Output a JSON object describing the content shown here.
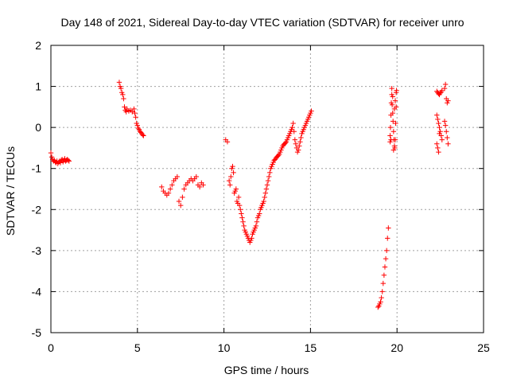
{
  "chart_data": {
    "type": "scatter",
    "title": "Day 148 of 2021, Sidereal Day-to-day VTEC variation (SDTVAR) for receiver unro",
    "xlabel": "GPS time / hours",
    "ylabel": "SDTVAR / TECUs",
    "xlim": [
      0,
      25
    ],
    "ylim": [
      -5,
      2
    ],
    "xticks": [
      0,
      5,
      10,
      15,
      20,
      25
    ],
    "yticks": [
      -5,
      -4,
      -3,
      -2,
      -1,
      0,
      1,
      2
    ],
    "xtick_labels": [
      "0",
      "5",
      "10",
      "15",
      "20",
      "25"
    ],
    "ytick_labels": [
      "-5",
      "-4",
      "-3",
      "-2",
      "-1",
      "0",
      "1",
      "2"
    ],
    "grid": true,
    "marker": "+",
    "color": "#ff0000",
    "series": [
      {
        "name": "SDTVAR",
        "x": [
          0.0,
          0.05,
          0.1,
          0.15,
          0.2,
          0.25,
          0.3,
          0.35,
          0.4,
          0.45,
          0.5,
          0.55,
          0.6,
          0.65,
          0.7,
          0.75,
          0.8,
          0.85,
          0.9,
          0.95,
          1.0,
          1.05,
          3.95,
          4.0,
          4.05,
          4.1,
          4.15,
          4.2,
          4.25,
          4.3,
          4.35,
          4.4,
          4.5,
          4.6,
          4.7,
          4.8,
          4.85,
          4.9,
          4.95,
          5.0,
          5.05,
          5.1,
          5.15,
          5.2,
          5.25,
          5.3,
          5.35,
          6.4,
          6.5,
          6.6,
          6.7,
          6.8,
          6.9,
          7.0,
          7.1,
          7.2,
          7.3,
          7.4,
          7.5,
          7.6,
          7.7,
          7.8,
          7.9,
          8.0,
          8.1,
          8.2,
          8.3,
          8.4,
          8.5,
          8.6,
          8.7,
          8.8,
          10.1,
          10.2,
          10.3,
          10.35,
          10.4,
          10.45,
          10.5,
          10.55,
          10.6,
          10.65,
          10.7,
          10.75,
          10.8,
          10.85,
          10.9,
          10.95,
          11.0,
          11.05,
          11.1,
          11.15,
          11.2,
          11.25,
          11.3,
          11.35,
          11.4,
          11.45,
          11.5,
          11.55,
          11.6,
          11.65,
          11.7,
          11.75,
          11.8,
          11.85,
          11.9,
          11.95,
          12.0,
          12.05,
          12.1,
          12.15,
          12.2,
          12.25,
          12.3,
          12.35,
          12.4,
          12.45,
          12.5,
          12.55,
          12.6,
          12.65,
          12.7,
          12.75,
          12.8,
          12.85,
          12.9,
          12.95,
          13.0,
          13.05,
          13.1,
          13.15,
          13.2,
          13.25,
          13.3,
          13.35,
          13.4,
          13.45,
          13.5,
          13.55,
          13.6,
          13.65,
          13.7,
          13.75,
          13.8,
          13.85,
          13.9,
          13.95,
          14.0,
          14.05,
          14.1,
          14.15,
          14.2,
          14.25,
          14.3,
          14.35,
          14.4,
          14.45,
          14.5,
          14.55,
          14.6,
          14.65,
          14.7,
          14.75,
          14.8,
          14.85,
          14.9,
          14.95,
          15.0,
          15.05,
          18.9,
          18.95,
          19.0,
          19.05,
          19.1,
          19.15,
          19.2,
          19.25,
          19.3,
          19.35,
          19.4,
          19.45,
          19.5,
          19.6,
          19.62,
          19.65,
          19.67,
          19.7,
          19.72,
          19.75,
          19.77,
          19.8,
          19.82,
          19.85,
          19.87,
          19.9,
          19.92,
          19.95,
          19.97,
          19.6,
          19.65,
          19.7,
          19.75,
          19.8,
          19.85,
          19.9,
          19.95,
          22.3,
          22.35,
          22.4,
          22.45,
          22.5,
          22.55,
          22.6,
          22.3,
          22.35,
          22.4,
          22.45,
          22.5,
          22.55,
          22.6,
          22.3,
          22.35,
          22.4,
          22.45,
          22.75,
          22.8,
          22.85,
          22.9,
          22.95,
          22.75,
          22.8,
          22.85,
          22.9,
          22.95
        ],
        "y": [
          -0.62,
          -0.72,
          -0.78,
          -0.82,
          -0.8,
          -0.84,
          -0.86,
          -0.82,
          -0.88,
          -0.85,
          -0.82,
          -0.86,
          -0.8,
          -0.78,
          -0.84,
          -0.8,
          -0.76,
          -0.82,
          -0.8,
          -0.78,
          -0.8,
          -0.82,
          1.1,
          1.0,
          0.95,
          0.85,
          0.8,
          0.7,
          0.5,
          0.42,
          0.38,
          0.45,
          0.4,
          0.42,
          0.38,
          0.45,
          0.35,
          0.25,
          0.1,
          0.05,
          -0.02,
          -0.05,
          -0.1,
          -0.12,
          -0.15,
          -0.18,
          -0.2,
          -1.45,
          -1.55,
          -1.6,
          -1.65,
          -1.6,
          -1.5,
          -1.4,
          -1.3,
          -1.25,
          -1.2,
          -1.8,
          -1.9,
          -1.7,
          -1.5,
          -1.4,
          -1.35,
          -1.3,
          -1.25,
          -1.3,
          -1.25,
          -1.2,
          -1.4,
          -1.45,
          -1.35,
          -1.4,
          -0.3,
          -0.35,
          -1.3,
          -1.4,
          -1.2,
          -1.0,
          -0.95,
          -1.1,
          -1.6,
          -1.55,
          -1.5,
          -1.8,
          -1.85,
          -1.7,
          -1.9,
          -2.0,
          -2.1,
          -2.2,
          -2.3,
          -2.4,
          -2.5,
          -2.55,
          -2.6,
          -2.65,
          -2.7,
          -2.75,
          -2.8,
          -2.75,
          -2.7,
          -2.6,
          -2.55,
          -2.5,
          -2.45,
          -2.4,
          -2.3,
          -2.2,
          -2.15,
          -2.1,
          -2.0,
          -1.95,
          -1.9,
          -1.85,
          -1.8,
          -1.7,
          -1.6,
          -1.5,
          -1.4,
          -1.3,
          -1.2,
          -1.1,
          -1.0,
          -0.95,
          -0.9,
          -0.85,
          -0.8,
          -0.78,
          -0.75,
          -0.72,
          -0.7,
          -0.68,
          -0.65,
          -0.6,
          -0.55,
          -0.5,
          -0.45,
          -0.42,
          -0.4,
          -0.38,
          -0.35,
          -0.3,
          -0.25,
          -0.2,
          -0.15,
          -0.1,
          -0.05,
          0.0,
          0.1,
          -0.1,
          -0.3,
          -0.4,
          -0.5,
          -0.6,
          -0.55,
          -0.45,
          -0.35,
          -0.25,
          -0.15,
          -0.1,
          -0.05,
          0.0,
          0.05,
          0.1,
          0.15,
          0.2,
          0.25,
          0.3,
          0.35,
          0.4,
          -4.38,
          -4.35,
          -4.3,
          -4.25,
          -4.15,
          -4.0,
          -3.8,
          -3.6,
          -3.4,
          -3.2,
          -3.0,
          -2.7,
          -2.45,
          -0.35,
          0.0,
          0.3,
          0.6,
          0.8,
          0.55,
          0.35,
          0.15,
          -0.1,
          -0.3,
          -0.45,
          -0.5,
          -0.3,
          0.1,
          0.5,
          0.9,
          -0.2,
          -0.3,
          0.95,
          0.75,
          -0.55,
          0.45,
          0.65,
          0.85,
          0.88,
          0.85,
          0.82,
          0.8,
          0.84,
          0.86,
          0.9,
          0.3,
          0.2,
          0.1,
          0.0,
          -0.1,
          -0.2,
          -0.3,
          -0.4,
          -0.5,
          -0.6,
          -0.15,
          0.95,
          1.05,
          0.7,
          0.6,
          0.65,
          0.15,
          0.05,
          -0.1,
          -0.25,
          -0.4
        ]
      }
    ]
  }
}
